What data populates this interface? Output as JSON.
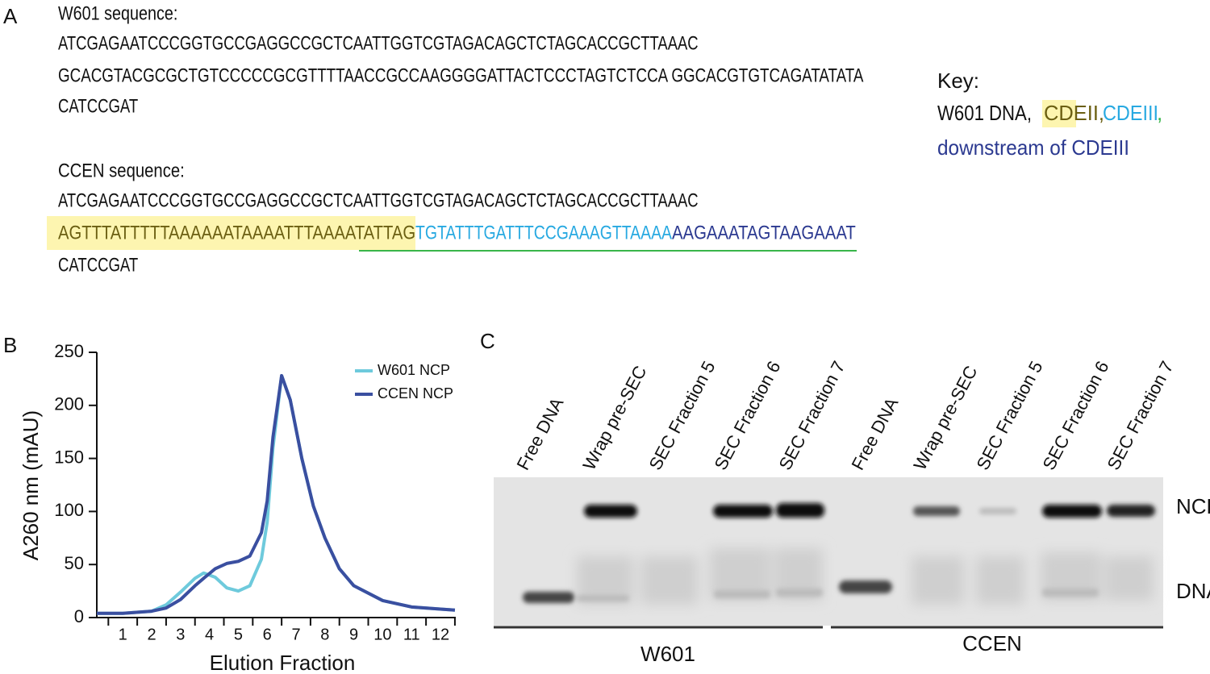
{
  "panel_a": {
    "label": "A",
    "w601": {
      "title": "W601 sequence:",
      "lines": [
        "ATCGAGAATCCCGGTGCCGAGGCCGCTCAATTGGTCGTAGACAGCTCTAGCACCGCTTAAAC",
        "GCACGTACGCGCTGTCCCCCGCGTTTTAACCGCCAAGGGGATTACTCCCTAGTCTCCA GGCACGTGTCAGATATATA",
        "CATCCGAT"
      ]
    },
    "ccen": {
      "title": "CCEN sequence:",
      "line1": "ATCGAGAATCCCGGTGCCGAGGCCGCTCAATTGGTCGTAGACAGCTCTAGCACCGCTTAAAC",
      "segments": [
        {
          "text": "AGTTTATTTTTAAAAAATAAAATTTAAAATATTAG",
          "color": "#6b5f12"
        },
        {
          "text": "TGTATTTGATTTCCGAAAGTTAAAA",
          "color": "#27a9e1"
        },
        {
          "text": "AAGAAATAGTAAGAAAT",
          "color": "#2b3990"
        }
      ],
      "line3": "CATCCGAT"
    },
    "key": {
      "title": "Key:",
      "w601": "W601 DNA,",
      "cdeii": "CDEII,",
      "cdeiii": "CDEIII",
      "comma": ",",
      "downstream": "downstream of CDEIII"
    }
  },
  "chart_data": {
    "type": "line",
    "label": "B",
    "xlabel": "Elution Fraction",
    "ylabel": "A260 nm (mAU)",
    "x": [
      0.1,
      1,
      2,
      2.5,
      3,
      3.5,
      3.8,
      4.2,
      4.6,
      5,
      5.4,
      5.8,
      6,
      6.2,
      6.5,
      6.8,
      7.2,
      7.6,
      8,
      8.5,
      9,
      10,
      11,
      12,
      12.5
    ],
    "series": [
      {
        "name": "W601 NCP",
        "color": "#6ecadc",
        "values": [
          4,
          4,
          6,
          12,
          24,
          37,
          42,
          38,
          28,
          25,
          30,
          55,
          90,
          160,
          228,
          205,
          150,
          105,
          75,
          46,
          30,
          16,
          10,
          8,
          7
        ]
      },
      {
        "name": "CCEN NCP",
        "color": "#3a4fa0",
        "values": [
          4,
          4,
          6,
          9,
          17,
          30,
          37,
          46,
          51,
          53,
          58,
          80,
          110,
          170,
          228,
          205,
          150,
          105,
          75,
          46,
          30,
          16,
          10,
          8,
          7
        ]
      }
    ],
    "xlim": [
      0.1,
      12.53
    ],
    "ylim": [
      0,
      250
    ],
    "xticks": [
      1,
      2,
      3,
      4,
      5,
      6,
      7,
      8,
      9,
      10,
      11,
      12
    ],
    "yticks": [
      0,
      50,
      100,
      150,
      200,
      250
    ],
    "legend": "upper right"
  },
  "panel_c": {
    "label": "C",
    "lanes": [
      "Free DNA",
      "Wrap pre-SEC",
      "SEC Fraction 5",
      "SEC Fraction 6",
      "SEC Fraction 7",
      "Free DNA",
      "Wrap pre-SEC",
      "SEC Fraction 5",
      "SEC Fraction 6",
      "SEC Fraction 7"
    ],
    "bands": [
      "NCP",
      "DNA"
    ],
    "groups": [
      "W601",
      "CCEN"
    ]
  }
}
